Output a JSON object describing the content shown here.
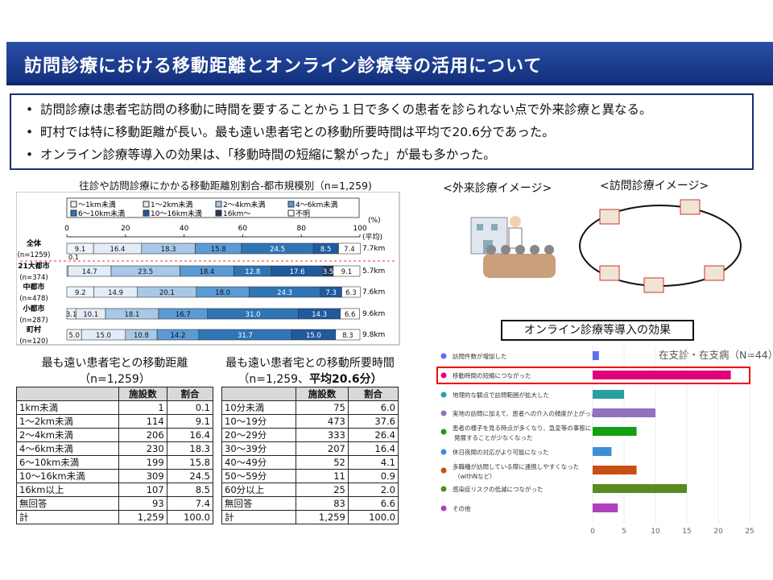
{
  "header": {
    "title": "訪問診療における移動距離とオンライン診療等の活用について"
  },
  "bullets": [
    "訪問診療は患者宅訪問の移動に時間を要することから１日で多くの患者を診られない点で外来診療と異なる。",
    "町村では特に移動距離が長い。最も遠い患者宅との移動所要時間は平均で20.6分であった。",
    "オンライン診療等導入の効果は、「移動時間の短縮に繋がった」が最も多かった。"
  ],
  "illustrations": {
    "outpatient_label": "<外来診療イメージ>",
    "home_visit_label": "<訪問診療イメージ>"
  },
  "chart_data": [
    {
      "type": "bar",
      "stacked": true,
      "orientation": "horizontal",
      "title": "往診や訪問診療にかかる移動距離別割合-都市規模別（n=1,259)",
      "legend": [
        "～1km未満",
        "1～2km未満",
        "2～4km未満",
        "4～6km未満",
        "6～10km未満",
        "10～16km未満",
        "16km～",
        "不明"
      ],
      "colors": [
        "#eef4fb",
        "#e3ecf7",
        "#a8c8e8",
        "#5b9bd5",
        "#2e75b6",
        "#1f5a9e",
        "#1f3864",
        "#ffffff"
      ],
      "xticks": [
        "0",
        "20",
        "40",
        "60",
        "80",
        "100"
      ],
      "xlim": [
        0,
        100
      ],
      "unit_label": "(%)",
      "avg_label": "(平均)",
      "categories": [
        {
          "name": "全体",
          "n": "(n=1259)",
          "avg": "7.7km"
        },
        {
          "name": "21大都市",
          "n": "(n=374)",
          "avg": "5.7km"
        },
        {
          "name": "中都市",
          "n": "(n=478)",
          "avg": "7.6km"
        },
        {
          "name": "小都市",
          "n": "(n=287)",
          "avg": "9.6km"
        },
        {
          "name": "町村",
          "n": "(n=120)",
          "avg": "9.8km"
        }
      ],
      "values": [
        [
          9.1,
          16.4,
          18.3,
          15.8,
          24.5,
          8.5,
          0.1,
          7.4
        ],
        [
          0.4,
          14.7,
          23.5,
          18.4,
          12.8,
          17.6,
          3.5,
          9.1
        ],
        [
          9.2,
          14.9,
          20.1,
          18.0,
          24.3,
          7.3,
          0,
          6.3
        ],
        [
          3.1,
          10.1,
          18.1,
          16.7,
          31.0,
          14.3,
          0,
          6.6
        ],
        [
          5.0,
          15.0,
          10.8,
          14.2,
          31.7,
          15.0,
          0,
          8.3
        ]
      ],
      "labels": [
        [
          "9.1",
          "16.4",
          "18.3",
          "15.8",
          "24.5",
          "8.5",
          "0.1",
          "7.4"
        ],
        [
          "",
          "14.7",
          "23.5",
          "18.4",
          "12.8",
          "17.6",
          "3.5",
          "9.1"
        ],
        [
          "9.2",
          "14.9",
          "20.1",
          "18.0",
          "24.3",
          "7.3",
          "",
          "6.3"
        ],
        [
          "3.1",
          "10.1",
          "18.1",
          "16.7",
          "31.0",
          "14.3",
          "",
          "6.6"
        ],
        [
          "5.0",
          "15.0",
          "10.8",
          "14.2",
          "31.7",
          "15.0",
          "",
          "8.3"
        ]
      ]
    },
    {
      "type": "table",
      "title": "最も遠い患者宅との移動距離",
      "subtitle": "（n=1,259）",
      "headers": [
        "",
        "施設数",
        "割合"
      ],
      "rows": [
        [
          "1km未満",
          "1",
          "0.1"
        ],
        [
          "1～2km未満",
          "114",
          "9.1"
        ],
        [
          "2～4km未満",
          "206",
          "16.4"
        ],
        [
          "4～6km未満",
          "230",
          "18.3"
        ],
        [
          "6～10km未満",
          "199",
          "15.8"
        ],
        [
          "10～16km未満",
          "309",
          "24.5"
        ],
        [
          "16km以上",
          "107",
          "8.5"
        ],
        [
          "無回答",
          "93",
          "7.4"
        ],
        [
          "計",
          "1,259",
          "100.0"
        ]
      ]
    },
    {
      "type": "table",
      "title": "最も遠い患者宅との移動所要時間",
      "subtitle": "（n=1,259、",
      "subtitle_bold": "平均20.6分）",
      "headers": [
        "",
        "施設数",
        "割合"
      ],
      "rows": [
        [
          "10分未満",
          "75",
          "6.0"
        ],
        [
          "10～19分",
          "473",
          "37.6"
        ],
        [
          "20～29分",
          "333",
          "26.4"
        ],
        [
          "30～39分",
          "207",
          "16.4"
        ],
        [
          "40～49分",
          "52",
          "4.1"
        ],
        [
          "50～59分",
          "11",
          "0.9"
        ],
        [
          "60分以上",
          "25",
          "2.0"
        ],
        [
          "無回答",
          "83",
          "6.6"
        ],
        [
          "計",
          "1,259",
          "100.0"
        ]
      ]
    },
    {
      "type": "bar",
      "orientation": "horizontal",
      "title": "オンライン診療等導入の効果",
      "subtitle": "在支診・在支病（N=44）",
      "xlim": [
        0,
        25
      ],
      "xticks": [
        "0",
        "5",
        "10",
        "15",
        "20",
        "25"
      ],
      "categories": [
        "訪問件数が増加した",
        "移動時間の短縮につながった",
        "地理的な観点で訪問範囲が拡大した",
        "実地の訪問に加えて、患者への介入の頻度が上がった",
        "患者の様子を見る時点が多くなり、急変等の事態に発展することが少なくなった",
        "休日夜間の対応がより可能になった",
        "多職種が訪問している際に連携しやすくなった（withNなど）",
        "感染症リスクの低減につながった",
        "その他"
      ],
      "values": [
        1,
        22,
        5,
        10,
        7,
        3,
        7,
        15,
        4
      ],
      "colors": [
        "#5b6ff0",
        "#e0007a",
        "#2a9fa0",
        "#9370c0",
        "#12a012",
        "#3a90d8",
        "#c85010",
        "#5a8a20",
        "#b040c0"
      ],
      "highlight": 1
    }
  ]
}
